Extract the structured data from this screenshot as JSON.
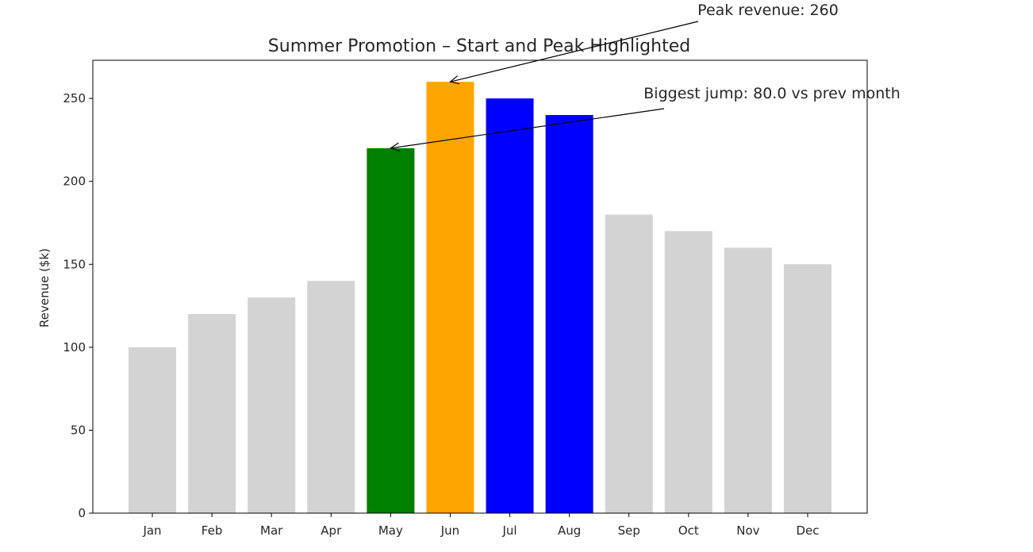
{
  "chart_data": {
    "type": "bar",
    "title": "Summer Promotion – Start and Peak Highlighted",
    "xlabel": "",
    "ylabel": "Revenue ($k)",
    "categories": [
      "Jan",
      "Feb",
      "Mar",
      "Apr",
      "May",
      "Jun",
      "Jul",
      "Aug",
      "Sep",
      "Oct",
      "Nov",
      "Dec"
    ],
    "values": [
      100,
      120,
      130,
      140,
      220,
      260,
      250,
      240,
      180,
      170,
      160,
      150
    ],
    "bar_colors": [
      "#d3d3d3",
      "#d3d3d3",
      "#d3d3d3",
      "#d3d3d3",
      "#008000",
      "#ffa500",
      "#0000ff",
      "#0000ff",
      "#d3d3d3",
      "#d3d3d3",
      "#d3d3d3",
      "#d3d3d3"
    ],
    "ylim": [
      0,
      273
    ],
    "yticks": [
      0,
      50,
      100,
      150,
      200,
      250
    ],
    "grid": false,
    "annotations": [
      {
        "text": "Peak revenue: 260",
        "target_category": "Jun",
        "target_value": 260
      },
      {
        "text": "Biggest jump: 80.0 vs prev month",
        "target_category": "May",
        "target_value": 220
      }
    ]
  }
}
